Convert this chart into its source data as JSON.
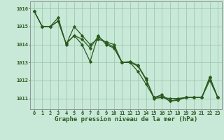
{
  "title": "Graphe pression niveau de la mer (hPa)",
  "bg_color": "#c8e8d8",
  "line_color": "#2a5a1e",
  "grid_color": "#a0c8b0",
  "ylim": [
    1010.4,
    1016.4
  ],
  "xlim": [
    -0.5,
    23.5
  ],
  "yticks": [
    1011,
    1012,
    1013,
    1014,
    1015,
    1016
  ],
  "xticks": [
    0,
    1,
    2,
    3,
    4,
    5,
    6,
    7,
    8,
    9,
    10,
    11,
    12,
    13,
    14,
    15,
    16,
    17,
    18,
    19,
    20,
    21,
    22,
    23
  ],
  "series1_x": [
    0,
    1,
    2,
    3,
    4,
    5,
    6,
    7,
    8,
    9,
    10,
    11,
    12,
    13,
    14,
    15,
    16,
    17,
    18,
    19,
    20,
    21,
    22,
    23
  ],
  "series1_y": [
    1015.85,
    1015.0,
    1015.0,
    1015.5,
    1014.0,
    1015.0,
    1014.5,
    1014.0,
    1014.3,
    1014.15,
    1014.0,
    1013.0,
    1013.0,
    1012.8,
    1012.05,
    1011.0,
    1011.05,
    1011.0,
    1011.0,
    1011.05,
    1011.05,
    1011.05,
    1012.0,
    1011.05
  ],
  "series2_x": [
    0,
    1,
    2,
    3,
    4,
    5,
    6,
    7,
    8,
    9,
    10,
    11,
    12,
    13,
    14,
    15,
    16,
    17,
    18,
    19,
    20,
    21,
    22,
    23
  ],
  "series2_y": [
    1015.85,
    1015.0,
    1015.0,
    1015.3,
    1014.05,
    1014.5,
    1014.0,
    1013.05,
    1014.5,
    1014.0,
    1013.8,
    1013.0,
    1013.0,
    1012.5,
    1011.8,
    1011.05,
    1011.2,
    1010.85,
    1010.9,
    1011.05,
    1011.05,
    1011.05,
    1012.2,
    1011.05
  ],
  "series3_x": [
    0,
    1,
    2,
    3,
    4,
    5,
    6,
    7,
    8,
    9,
    10,
    11,
    12,
    13,
    14,
    15,
    16,
    17,
    18,
    19,
    20,
    21,
    22,
    23
  ],
  "series3_y": [
    1015.85,
    1015.0,
    1015.0,
    1015.3,
    1014.05,
    1014.5,
    1014.3,
    1013.8,
    1014.45,
    1014.1,
    1013.85,
    1013.0,
    1013.05,
    1012.85,
    1012.1,
    1011.05,
    1011.1,
    1010.85,
    1010.95,
    1011.05,
    1011.05,
    1011.05,
    1012.15,
    1011.05
  ],
  "title_fontsize": 6.5,
  "tick_fontsize": 5.0
}
